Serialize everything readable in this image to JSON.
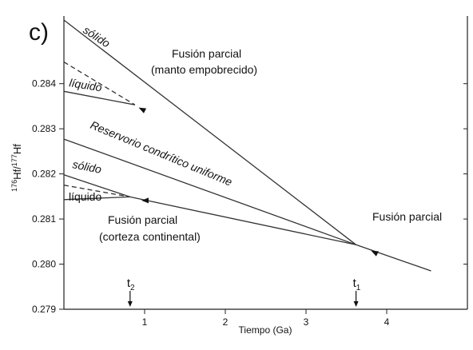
{
  "panel_label": "c)",
  "chart_data": {
    "type": "line",
    "xlabel": "Tiempo (Ga)",
    "ylabel": "176Hf/177Hf",
    "ylabel_parts": {
      "m1": "176",
      "n1": "Hf/",
      "m2": "177",
      "n2": "Hf"
    },
    "xlim": [
      0,
      5
    ],
    "ylim": [
      0.279,
      0.2855
    ],
    "x_ticks": [
      1,
      2,
      3,
      4
    ],
    "y_ticks": [
      0.279,
      0.28,
      0.281,
      0.282,
      0.283,
      0.284
    ],
    "y_tick_labels": [
      "0.279",
      "0.280",
      "0.281",
      "0.282",
      "0.283",
      "0.284"
    ],
    "series": [
      {
        "name": "Reservorio condrítico uniforme",
        "style": "solid",
        "points": [
          [
            0,
            0.28277
          ],
          [
            3.62,
            0.28043
          ]
        ]
      },
      {
        "points": [
          [
            3.62,
            0.28043
          ],
          [
            4.55,
            0.27985
          ]
        ],
        "style": "solid"
      },
      {
        "points": [
          [
            0,
            0.28541
          ],
          [
            3.62,
            0.28043
          ]
        ],
        "style": "solid"
      },
      {
        "points": [
          [
            0,
            0.28383
          ],
          [
            0.88,
            0.28353
          ]
        ],
        "style": "solid"
      },
      {
        "points": [
          [
            0,
            0.28448
          ],
          [
            0.88,
            0.28353
          ]
        ],
        "style": "dashed"
      },
      {
        "points": [
          [
            0,
            0.28198
          ],
          [
            0.82,
            0.28149
          ]
        ],
        "style": "solid"
      },
      {
        "points": [
          [
            0,
            0.28143
          ],
          [
            0.82,
            0.28149
          ]
        ],
        "style": "solid"
      },
      {
        "points": [
          [
            0,
            0.28175
          ],
          [
            0.82,
            0.28149
          ]
        ],
        "style": "dashed"
      },
      {
        "points": [
          [
            0.82,
            0.28149
          ],
          [
            3.62,
            0.28043
          ]
        ],
        "style": "solid"
      }
    ],
    "arrow_markers": [
      {
        "at": [
          0.97,
          0.28343
        ],
        "direction": "to-upper-left"
      },
      {
        "at": [
          1.01,
          0.28141
        ],
        "direction": "to-left"
      },
      {
        "at": [
          3.85,
          0.28026
        ],
        "direction": "to-upper-left"
      }
    ],
    "time_markers": [
      {
        "label": "t",
        "sub": "2",
        "x": 0.82
      },
      {
        "label": "t",
        "sub": "1",
        "x": 3.62
      }
    ],
    "annotations": [
      {
        "key": "solido_top",
        "text": "sólido"
      },
      {
        "key": "liquido_top",
        "text": "líquido"
      },
      {
        "key": "fp_manto_1",
        "text": "Fusión parcial"
      },
      {
        "key": "fp_manto_2",
        "text": "(manto empobrecido)"
      },
      {
        "key": "chur",
        "text": "Reservorio condrítico uniforme"
      },
      {
        "key": "solido_bottom",
        "text": "sólido"
      },
      {
        "key": "liquido_bottom",
        "text": "líquido"
      },
      {
        "key": "fp_corteza_1",
        "text": "Fusión parcial"
      },
      {
        "key": "fp_corteza_2",
        "text": "(corteza continental)"
      },
      {
        "key": "fp_right",
        "text": "Fusión parcial"
      }
    ],
    "grid": false,
    "legend": "none"
  }
}
